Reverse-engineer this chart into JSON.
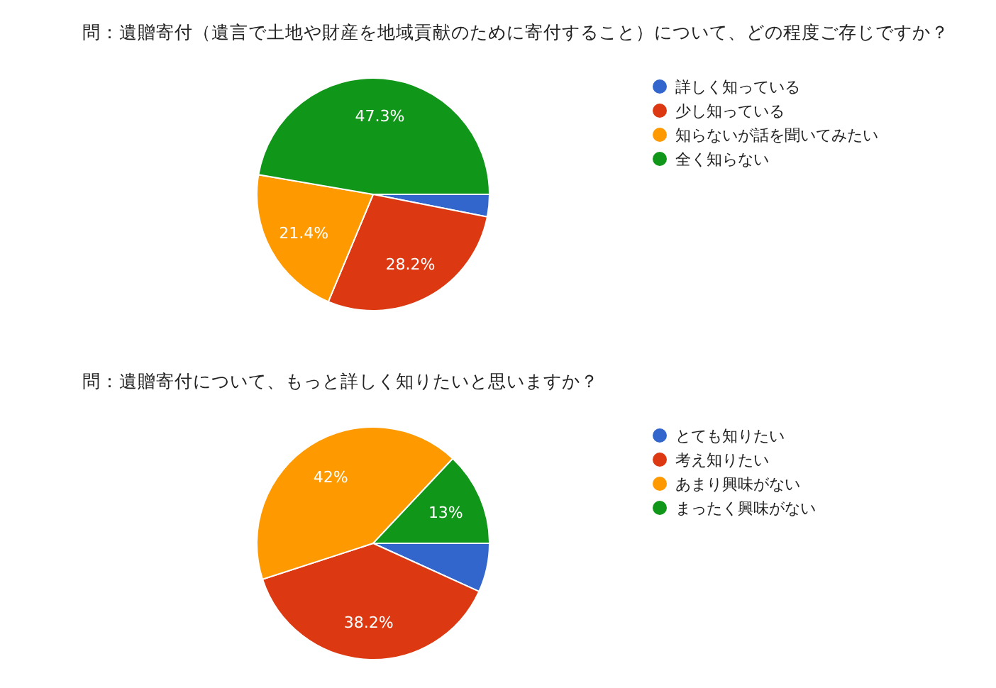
{
  "chart_data": [
    {
      "type": "pie",
      "title": "問：遺贈寄付（遺言で土地や財産を地域貢献のために寄付すること）について、どの程度ご存じですか？",
      "categories": [
        "詳しく知っている",
        "少し知っている",
        "知らないが話を聞いてみたい",
        "全く知らない"
      ],
      "values": [
        3.1,
        28.2,
        21.4,
        47.3
      ],
      "colors": [
        "#3366cc",
        "#dc3912",
        "#ff9900",
        "#109618"
      ],
      "value_labels": [
        null,
        "28.2%",
        "21.4%",
        "47.3%"
      ],
      "legend": "right"
    },
    {
      "type": "pie",
      "title": "問：遺贈寄付について、もっと詳しく知りたいと思いますか？",
      "categories": [
        "とても知りたい",
        "考え知りたい",
        "あまり興味がない",
        "まったく興味がない"
      ],
      "values": [
        6.8,
        38.2,
        42,
        13
      ],
      "colors": [
        "#3366cc",
        "#dc3912",
        "#ff9900",
        "#109618"
      ],
      "value_labels": [
        null,
        "38.2%",
        "42%",
        "13%"
      ],
      "legend": "right"
    }
  ]
}
